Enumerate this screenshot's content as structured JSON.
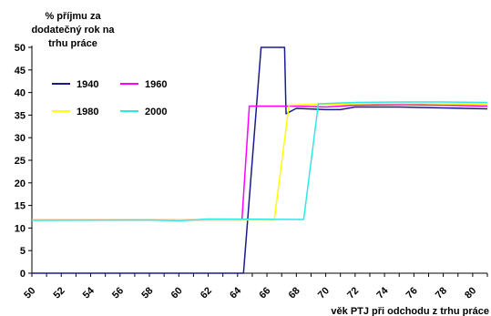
{
  "chart_data": {
    "type": "line",
    "ylabel": "% příjmu za dodatečný rok na trhu práce",
    "ylabel_lines": [
      "% příjmu za",
      "dodatečný rok na",
      "trhu práce"
    ],
    "xlabel": "věk PTJ při odchodu z trhu práce",
    "xlim": [
      50,
      81
    ],
    "ylim": [
      0,
      50
    ],
    "x_ticks": [
      50,
      52,
      54,
      56,
      58,
      60,
      62,
      64,
      66,
      68,
      70,
      72,
      74,
      76,
      78,
      80
    ],
    "y_ticks": [
      0,
      5,
      10,
      15,
      20,
      25,
      30,
      35,
      40,
      45,
      50
    ],
    "grid": false,
    "legend_placement": "top-left",
    "series": [
      {
        "name": "1940",
        "color": "#1a1a8c",
        "points": [
          [
            50,
            0
          ],
          [
            64.4,
            0
          ],
          [
            65.6,
            50
          ],
          [
            67.2,
            50
          ],
          [
            67.3,
            35.3
          ],
          [
            68,
            36.5
          ],
          [
            70,
            36.2
          ],
          [
            71,
            36.2
          ],
          [
            72,
            36.8
          ],
          [
            75,
            36.8
          ],
          [
            78,
            36.6
          ],
          [
            81,
            36.4
          ]
        ]
      },
      {
        "name": "1960",
        "color": "#ff00ff",
        "points": [
          [
            50,
            11.8
          ],
          [
            64.3,
            11.8
          ],
          [
            64.8,
            37
          ],
          [
            66,
            37
          ],
          [
            68,
            37
          ],
          [
            70,
            36.8
          ],
          [
            72,
            37.2
          ],
          [
            75,
            37.3
          ],
          [
            78,
            37.2
          ],
          [
            81,
            37
          ]
        ]
      },
      {
        "name": "1980",
        "color": "#ffff00",
        "points": [
          [
            50,
            11.8
          ],
          [
            66.5,
            11.8
          ],
          [
            67.5,
            37.2
          ],
          [
            69,
            37.4
          ],
          [
            72,
            37.5
          ],
          [
            75,
            37.6
          ],
          [
            78,
            37.5
          ],
          [
            81,
            37.4
          ]
        ]
      },
      {
        "name": "2000",
        "color": "#33e6e6",
        "points": [
          [
            50,
            11.7
          ],
          [
            58,
            11.8
          ],
          [
            60,
            11.6
          ],
          [
            62,
            12
          ],
          [
            68.5,
            11.9
          ],
          [
            69.5,
            37.5
          ],
          [
            72,
            37.8
          ],
          [
            75,
            37.9
          ],
          [
            78,
            37.9
          ],
          [
            81,
            37.8
          ]
        ]
      }
    ]
  }
}
